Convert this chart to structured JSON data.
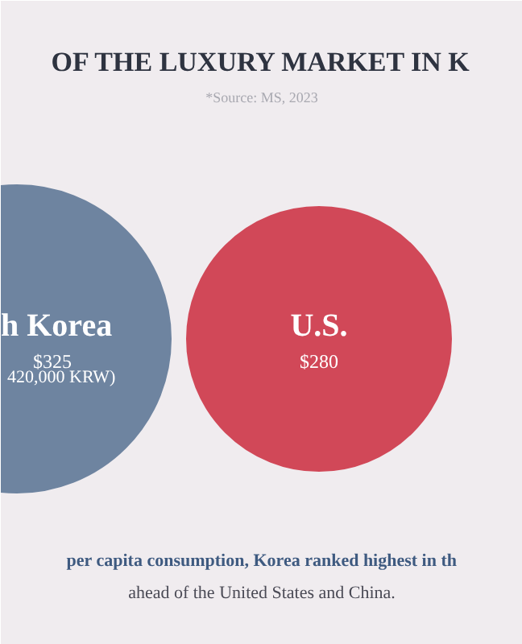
{
  "chart_data": {
    "type": "other",
    "title": "OF THE LUXURY MARKET IN K",
    "subtitle": "*Source: MS, 2023",
    "categories": [
      "h Korea",
      "U.S."
    ],
    "values": [
      325,
      280
    ],
    "value_labels": [
      "$325",
      "$280"
    ],
    "colors": [
      "#6e84a0",
      "#d14858"
    ],
    "annotations": [
      "420,000 KRW)",
      "per capita consumption, Korea ranked highest in th",
      "ahead of the United States and China."
    ]
  }
}
